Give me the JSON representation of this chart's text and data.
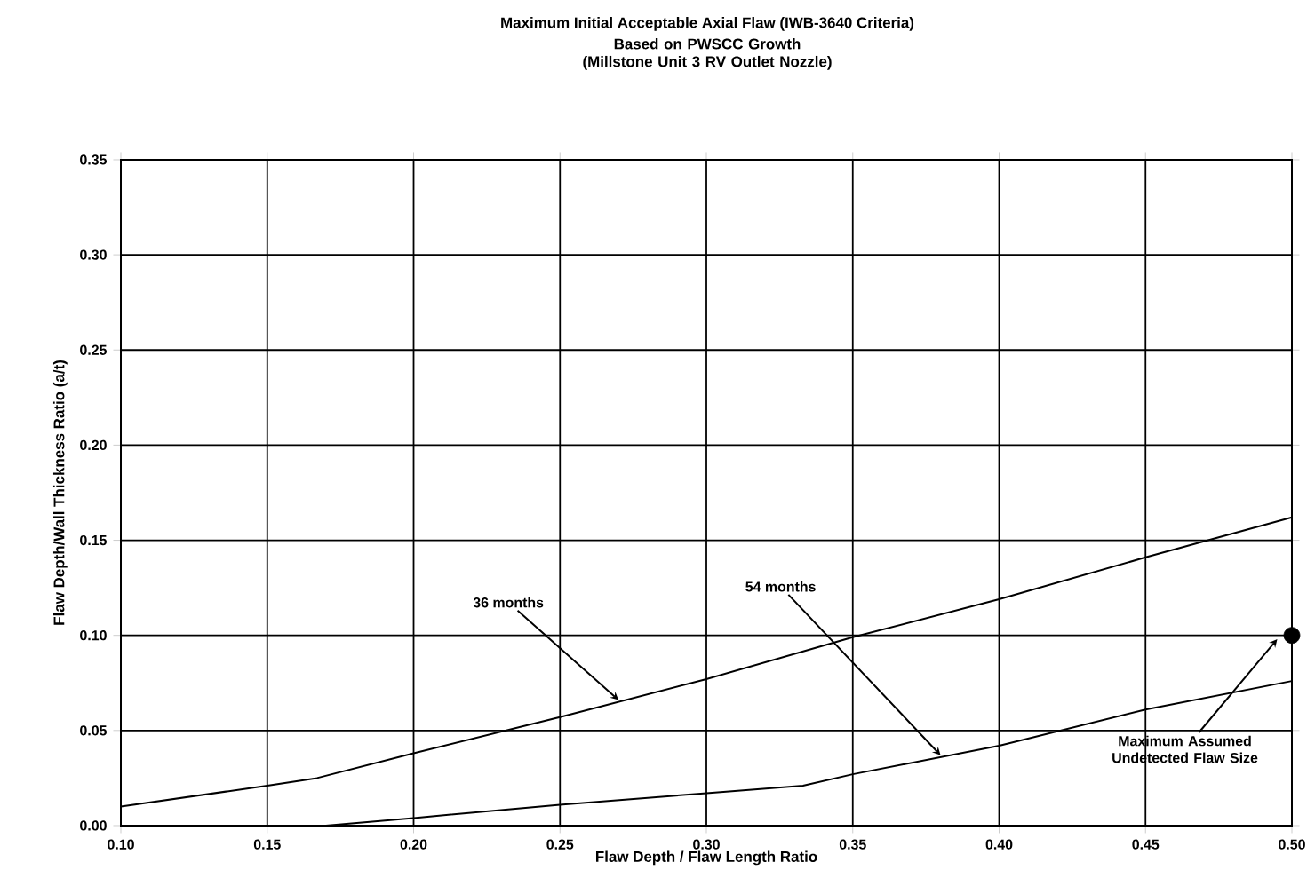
{
  "chart_data": {
    "type": "line",
    "title": "Maximum Initial Acceptable Axial Flaw (IWB-3640 Criteria)",
    "subtitle": "Based on PWSCC Growth (Millstone Unit 3 RV Outlet Nozzle)",
    "xlabel": "Flaw Depth / Flaw Length Ratio",
    "ylabel": "Flaw Depth/Wall Thickness Ratio (a/t)",
    "series": [
      {
        "color": "#000000",
        "x": [
          0.1,
          0.15,
          0.167,
          0.2,
          0.25,
          0.3,
          0.35,
          0.4,
          0.45,
          0.5
        ],
        "values": [
          0.01,
          0.021,
          0.025,
          0.038,
          0.057,
          0.077,
          0.099,
          0.119,
          0.141,
          0.162
        ]
      },
      {
        "color": "#000000",
        "x": [
          0.17,
          0.2,
          0.25,
          0.3,
          0.333,
          0.35,
          0.4,
          0.45,
          0.5
        ],
        "values": [
          0.0,
          0.004,
          0.011,
          0.017,
          0.021,
          0.027,
          0.042,
          0.061,
          0.076
        ]
      },
      {
        "type": "scatter",
        "marker": "circle",
        "color": "#000000",
        "x": [
          0.5
        ],
        "values": [
          0.1
        ]
      }
    ],
    "xlim": [
      0.1,
      0.5
    ],
    "ylim": [
      0.0,
      0.35
    ],
    "xticks": [
      {
        "value": 0.1,
        "label": "0.10"
      },
      {
        "value": 0.15,
        "label": "0.15"
      },
      {
        "value": 0.2,
        "label": "0.20"
      },
      {
        "value": 0.25,
        "label": "0.25"
      },
      {
        "value": 0.3,
        "label": "0.30"
      },
      {
        "value": 0.35,
        "label": "0.35"
      },
      {
        "value": 0.4,
        "label": "0.40"
      },
      {
        "value": 0.45,
        "label": "0.45"
      },
      {
        "value": 0.5,
        "label": "0.50"
      }
    ],
    "yticks": [
      {
        "value": 0.0,
        "label": "0.00"
      },
      {
        "value": 0.05,
        "label": "0.05"
      },
      {
        "value": 0.1,
        "label": "0.10"
      },
      {
        "value": 0.15,
        "label": "0.15"
      },
      {
        "value": 0.2,
        "label": "0.20"
      },
      {
        "value": 0.25,
        "label": "0.25"
      },
      {
        "value": 0.3,
        "label": "0.30"
      },
      {
        "value": 0.35,
        "label": "0.35"
      }
    ],
    "grid": true,
    "annotations": [
      {
        "text": "36 months",
        "x": 0.27,
        "y": 0.066
      },
      {
        "text": "54 months",
        "x": 0.38,
        "y": 0.037
      },
      {
        "text": "Maximum Assumed Undetected Flaw Size",
        "x": 0.495,
        "y": 0.098
      }
    ]
  }
}
